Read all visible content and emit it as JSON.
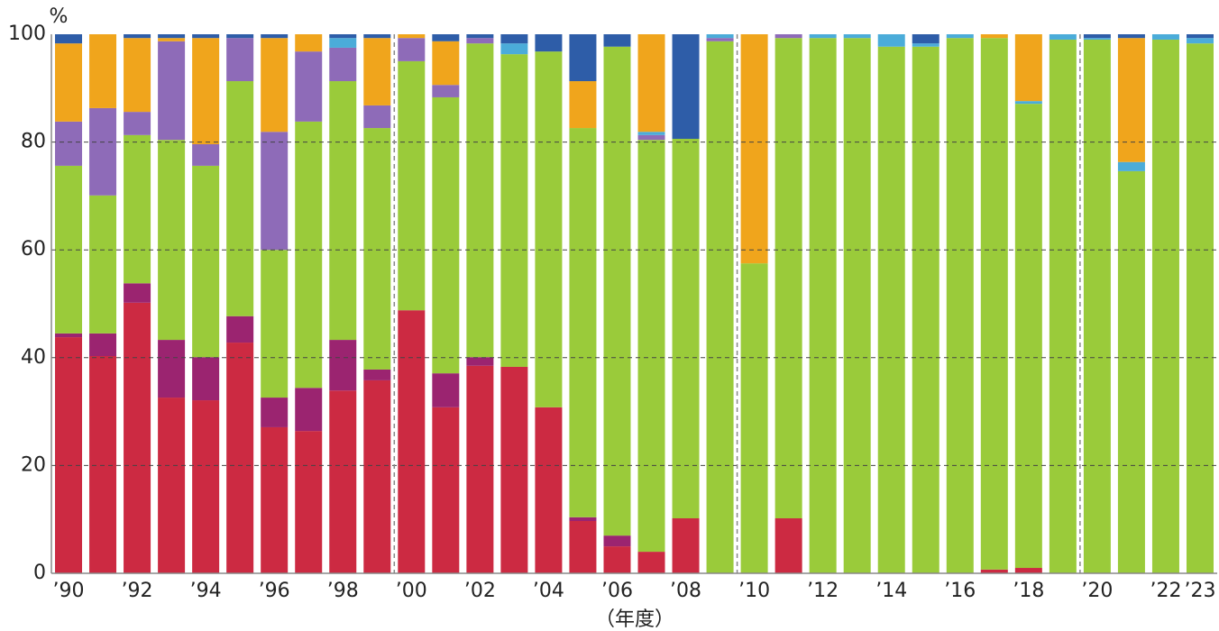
{
  "chart_data": {
    "type": "stacked_bar",
    "y_unit_label": "%",
    "x_axis_label": "（年度）",
    "categories": [
      "’90",
      null,
      "’92",
      null,
      "’94",
      null,
      "’96",
      null,
      "’98",
      null,
      "’00",
      null,
      "’02",
      null,
      "’04",
      null,
      "’06",
      null,
      "’08",
      null,
      "’10",
      null,
      "’12",
      null,
      "’14",
      null,
      "’16",
      null,
      "’18",
      null,
      "’20",
      null,
      "’22",
      "’23"
    ],
    "ylim": [
      0,
      100
    ],
    "yticks": [
      0,
      20,
      40,
      60,
      80,
      100
    ],
    "grid": true,
    "series": [
      {
        "color": "#cc2a42",
        "values": [
          43.8,
          40.3,
          50.2,
          32.6,
          32.1,
          42.8,
          27.1,
          26.4,
          33.9,
          35.8,
          48.8,
          30.8,
          38.5,
          38.3,
          30.8,
          9.7,
          5.0,
          4.0,
          10.2,
          0,
          0,
          10.2,
          0,
          0,
          0,
          0,
          0,
          0.7,
          1.0,
          0,
          0,
          0,
          0,
          0
        ]
      },
      {
        "color": "#9b2470",
        "values": [
          0.7,
          4.2,
          3.6,
          10.7,
          8,
          4.9,
          5.5,
          8,
          9.4,
          2,
          0,
          6.3,
          1.6,
          0,
          0,
          0.7,
          2,
          0,
          0,
          0,
          0,
          0,
          0,
          0,
          0,
          0,
          0,
          0,
          0,
          0,
          0,
          0,
          0,
          0
        ]
      },
      {
        "color": "#9acb3a",
        "values": [
          31.1,
          25.6,
          27.5,
          37.1,
          35.5,
          43.6,
          27.4,
          49.4,
          48,
          44.8,
          46.2,
          51.2,
          58.2,
          58,
          66,
          72.2,
          90.7,
          76.4,
          70.4,
          98.7,
          57.5,
          89.1,
          99.3,
          99.3,
          97.7,
          97.7,
          99.3,
          98.6,
          86.1,
          99,
          99,
          74.6,
          99,
          98.3
        ]
      },
      {
        "color": "#8e6bb8",
        "values": [
          8.2,
          16.2,
          4.3,
          18.3,
          4,
          8,
          21.9,
          13,
          6.2,
          4.2,
          4.3,
          2.3,
          1,
          0,
          0,
          0,
          0,
          0.9,
          0,
          0.6,
          0,
          0.7,
          0,
          0,
          0,
          0,
          0,
          0,
          0,
          0,
          0,
          0,
          0,
          0
        ]
      },
      {
        "color": "#4bacd9",
        "values": [
          0,
          0,
          0,
          0,
          0,
          0,
          0,
          0,
          1.8,
          0,
          0,
          0,
          0,
          2,
          0,
          0,
          0,
          0.6,
          0,
          0.7,
          0,
          0,
          0.7,
          0.7,
          2.3,
          0.6,
          0.7,
          0,
          0.5,
          1.0,
          0.3,
          1.7,
          1.0,
          1.0
        ]
      },
      {
        "color": "#f0a51c",
        "values": [
          14.5,
          13.7,
          13.7,
          0.6,
          19.7,
          0,
          17.4,
          3.2,
          0,
          12.5,
          0.7,
          8.1,
          0,
          0,
          0,
          8.7,
          0,
          18.1,
          0,
          0,
          42.5,
          0,
          0,
          0,
          0,
          0,
          0,
          0.7,
          12.4,
          0,
          0,
          23,
          0,
          0
        ]
      },
      {
        "color": "#2e5da8",
        "values": [
          1.7,
          0,
          0.7,
          0.7,
          0.7,
          0.7,
          0.7,
          0,
          0.7,
          0.7,
          0,
          1.3,
          0.7,
          1.7,
          3.2,
          8.7,
          2.3,
          0,
          19.4,
          0,
          0,
          0,
          0,
          0,
          0,
          1.7,
          0,
          0,
          0,
          0,
          0.7,
          0.7,
          0,
          0.7
        ]
      }
    ]
  }
}
